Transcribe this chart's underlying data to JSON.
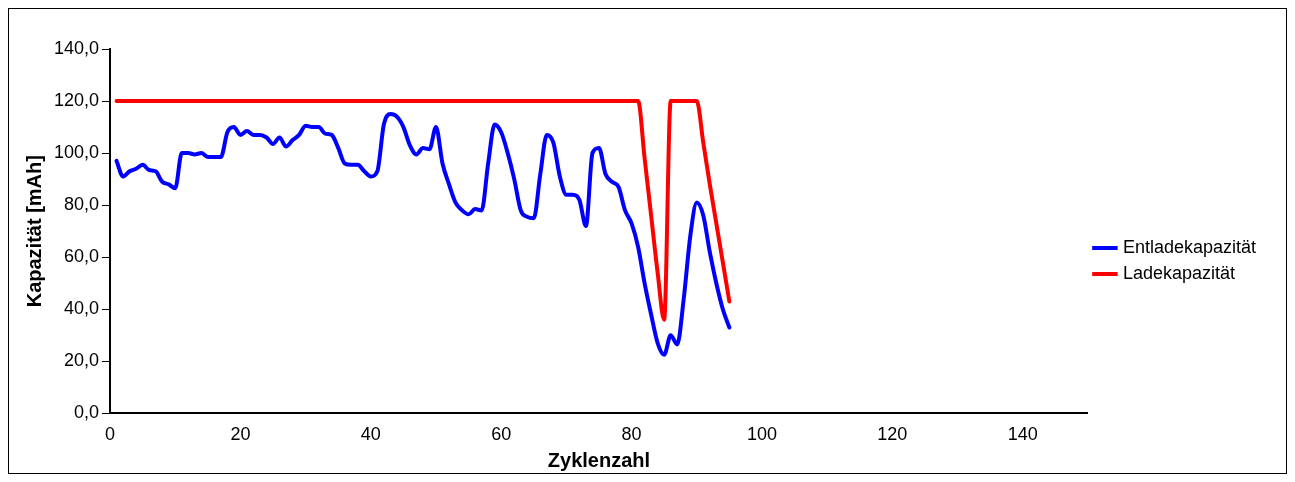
{
  "chart_data": {
    "type": "line",
    "xlabel": "Zyklenzahl",
    "ylabel": "Kapazität [mAh]",
    "legend": "right",
    "grid": false,
    "marker": "none",
    "line_style": "solid",
    "xlim": [
      0,
      150
    ],
    "xticks": [
      0,
      20,
      40,
      60,
      80,
      100,
      120,
      140
    ],
    "ylim": [
      0,
      140
    ],
    "yticks": [
      {
        "value": 0,
        "label": "0,0"
      },
      {
        "value": 20,
        "label": "20,0"
      },
      {
        "value": 40,
        "label": "40,0"
      },
      {
        "value": 60,
        "label": "60,0"
      },
      {
        "value": 80,
        "label": "80,0"
      },
      {
        "value": 100,
        "label": "100,0"
      },
      {
        "value": 120,
        "label": "120,0"
      },
      {
        "value": 140,
        "label": "140,0"
      }
    ],
    "series": [
      {
        "name": "Entladekapazität",
        "color": "#0000ff",
        "x": [
          1,
          2,
          3,
          4,
          5,
          6,
          7,
          8,
          9,
          10,
          11,
          12,
          13,
          14,
          15,
          16,
          17,
          18,
          19,
          20,
          21,
          22,
          23,
          24,
          25,
          26,
          27,
          28,
          29,
          30,
          31,
          32,
          33,
          34,
          35,
          36,
          37,
          38,
          39,
          40,
          41,
          42,
          43,
          44,
          45,
          46,
          47,
          48,
          49,
          50,
          51,
          52,
          53,
          54,
          55,
          56,
          57,
          58,
          59,
          60,
          61,
          62,
          63,
          64,
          65,
          66,
          67,
          68,
          69,
          70,
          71,
          72,
          73,
          74,
          75,
          76,
          77,
          78,
          79,
          80,
          81,
          82,
          83,
          84,
          85,
          86,
          87,
          88,
          89,
          90,
          91,
          92,
          93,
          94,
          95
        ],
        "values": [
          97,
          91,
          93,
          94,
          95.5,
          93.5,
          93,
          89,
          88,
          86.5,
          100,
          100,
          99.5,
          100,
          98.5,
          98.5,
          98.5,
          108,
          110,
          107,
          108.5,
          107,
          107,
          106,
          103.5,
          106,
          102.5,
          105,
          107,
          110.5,
          110,
          110,
          107.5,
          107,
          102,
          96,
          95.5,
          95.5,
          93,
          91,
          93,
          111,
          115,
          114,
          110,
          103,
          99.5,
          102,
          101.5,
          110,
          96,
          88,
          81,
          78,
          76.5,
          78.5,
          78,
          96,
          111,
          108,
          100,
          90,
          78,
          75.5,
          75,
          92,
          107,
          104,
          91,
          84,
          84,
          82,
          72,
          100,
          102,
          92,
          89,
          87,
          78,
          73,
          64,
          50,
          38,
          27,
          22.5,
          30,
          26.5,
          44,
          68,
          81,
          76,
          62,
          50,
          40,
          33
        ]
      },
      {
        "name": "Ladekapazität",
        "color": "#ff0000",
        "x": [
          1,
          81,
          82,
          83,
          84,
          85,
          86,
          87,
          88,
          89,
          90,
          91,
          92,
          93,
          94,
          95
        ],
        "values": [
          120,
          120,
          98,
          76,
          54,
          36,
          120,
          120,
          120,
          120,
          120,
          104,
          88,
          73,
          58,
          43
        ]
      }
    ]
  }
}
